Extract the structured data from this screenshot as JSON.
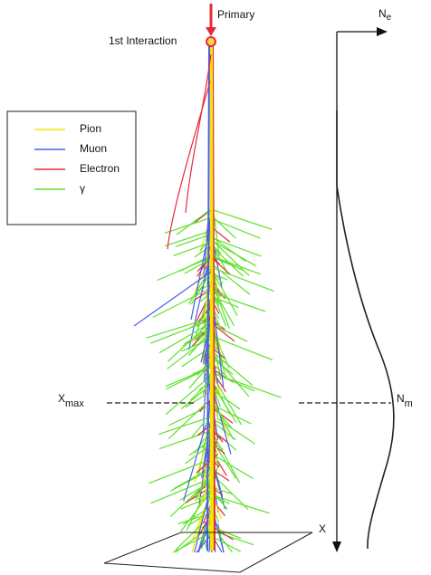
{
  "primary": {
    "label": "Primary"
  },
  "first_interaction": {
    "label": "1st Interaction"
  },
  "legend": {
    "entries": [
      {
        "label": "Pion",
        "color": "#f2e600"
      },
      {
        "label": "Muon",
        "color": "#4a5ee8"
      },
      {
        "label": "Electron",
        "color": "#e8283c"
      },
      {
        "label": "γ",
        "color": "#5ee02a"
      }
    ]
  },
  "axis": {
    "top_label": {
      "main": "N",
      "sub": "e"
    },
    "bottom_label": "X"
  },
  "xmax": {
    "main": "X",
    "sub": "max"
  },
  "nmax": {
    "main": "N",
    "sub": "m"
  }
}
